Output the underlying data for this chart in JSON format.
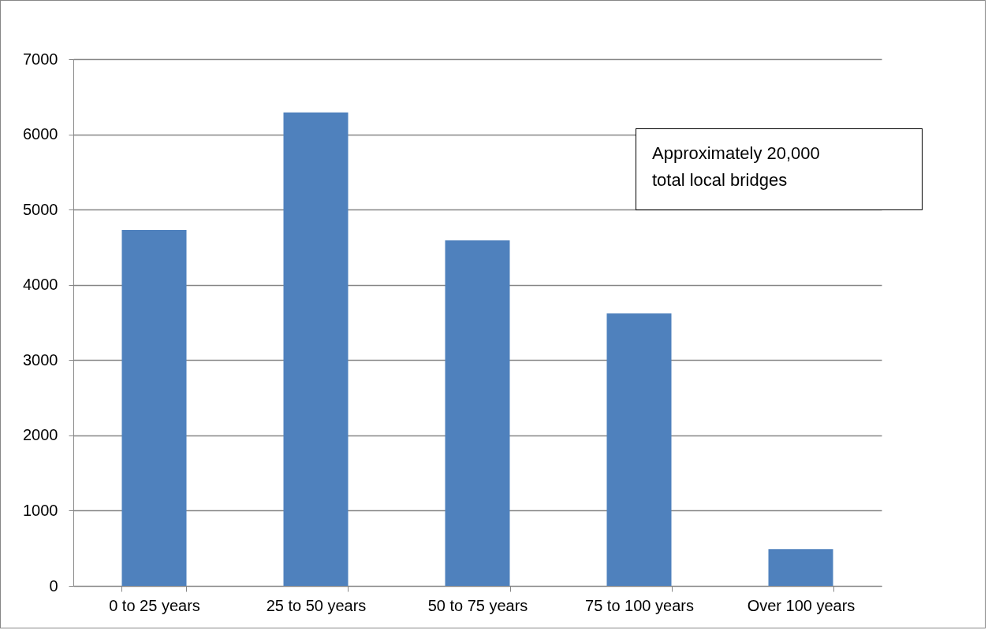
{
  "chart_data": {
    "type": "bar",
    "categories": [
      "0 to 25 years",
      "25 to 50 years",
      "50 to 75 years",
      "75 to 100 years",
      "Over 100 years"
    ],
    "values": [
      4730,
      6290,
      4590,
      3620,
      490
    ],
    "color": "#4f81bd",
    "ylim": [
      0,
      7000
    ],
    "yticks": [
      0,
      1000,
      2000,
      3000,
      4000,
      5000,
      6000,
      7000
    ],
    "grid": "y",
    "annotations": [
      "Approximately 20,000\ntotal local bridges"
    ]
  }
}
